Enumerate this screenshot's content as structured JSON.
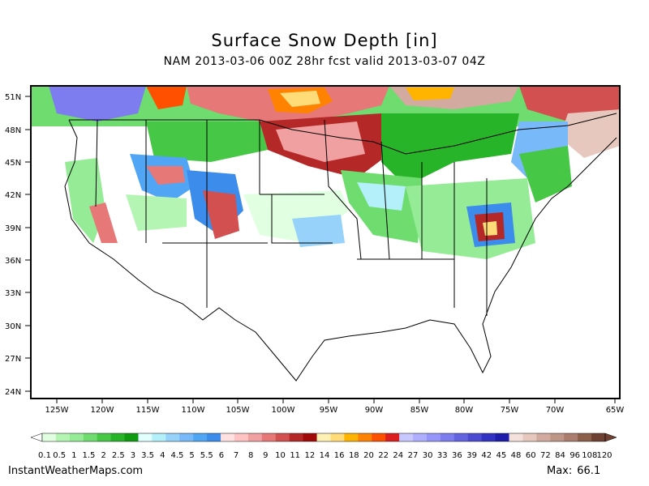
{
  "header": {
    "title": "Surface Snow Depth [in]",
    "subtitle": "NAM 2013-03-06 00Z 28hr fcst valid 2013-03-07 04Z"
  },
  "map": {
    "lat_labels": [
      "51N",
      "48N",
      "45N",
      "42N",
      "39N",
      "36N",
      "33N",
      "30N",
      "27N",
      "24N"
    ],
    "lon_labels": [
      "125W",
      "120W",
      "115W",
      "110W",
      "105W",
      "100W",
      "95W",
      "90W",
      "85W",
      "80W",
      "75W",
      "70W",
      "65W"
    ]
  },
  "legend": {
    "labels": [
      "0.1",
      "0.5",
      "1",
      "1.5",
      "2",
      "2.5",
      "3",
      "3.5",
      "4",
      "4.5",
      "5",
      "5.5",
      "6",
      "7",
      "8",
      "9",
      "10",
      "11",
      "12",
      "14",
      "16",
      "18",
      "20",
      "22",
      "24",
      "27",
      "30",
      "33",
      "36",
      "39",
      "42",
      "45",
      "48",
      "60",
      "72",
      "84",
      "96",
      "108",
      "120"
    ],
    "colors": [
      "#e1ffe1",
      "#b4f5b4",
      "#96eb96",
      "#6edc6e",
      "#46c846",
      "#28b428",
      "#0f9b0f",
      "#e1ffff",
      "#b4f0fa",
      "#96d2fa",
      "#78b9fa",
      "#50a5f5",
      "#3c8ceb",
      "#ffe1e1",
      "#ffc3c3",
      "#f0a0a0",
      "#e67878",
      "#d25050",
      "#b42828",
      "#a00a0a",
      "#fff0b4",
      "#ffdc78",
      "#ffb400",
      "#ff8200",
      "#ff5000",
      "#dc1e1e",
      "#c8c8ff",
      "#afafff",
      "#9696fa",
      "#7d7df0",
      "#6464e1",
      "#4b4bd2",
      "#3232c3",
      "#1e1eaa",
      "#f5e1dc",
      "#e6c8be",
      "#d2aaa0",
      "#be9687",
      "#aa7d6e",
      "#8c5f4b",
      "#6e4132"
    ]
  },
  "footer": {
    "source": "InstantWeatherMaps.com",
    "max_label": "Max:",
    "max_value": "66.1"
  }
}
